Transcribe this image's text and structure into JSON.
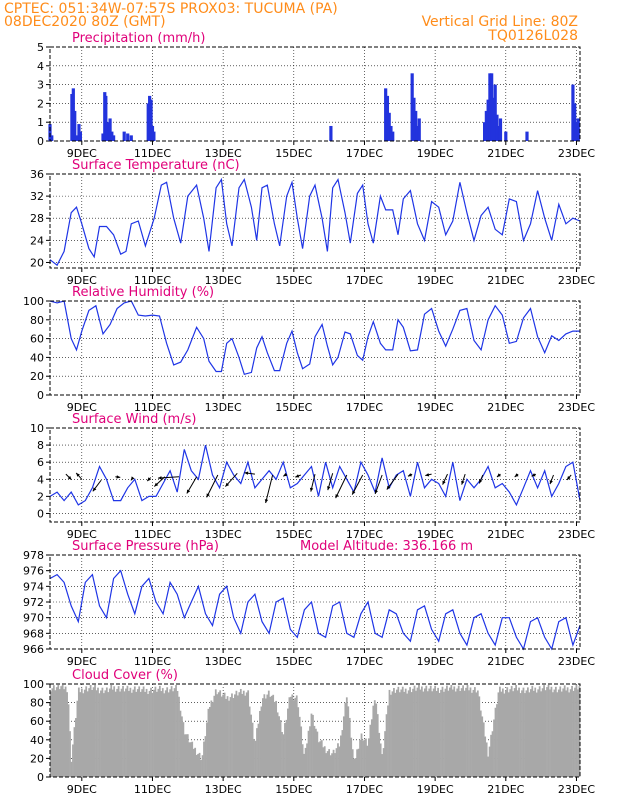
{
  "header": {
    "left1": "CPTEC:  051:34W-07:57S  PROX03: TUCUMA (PA)",
    "left2": "08DEC2020 80Z (GMT)",
    "right2": "Vertical Grid Line: 80Z",
    "right3": "TQ0126L028"
  },
  "colors": {
    "header": "#ff8c1a",
    "title": "#e0007a",
    "line": "#1f35e6",
    "bar": "#2233dd",
    "cloud": "#a8a8a8",
    "arrow": "#000000"
  },
  "chart_data": [
    {
      "id": "precip",
      "type": "bar",
      "title": "Precipitation (mm/h)",
      "x_tick_labels": [
        "9DEC",
        "11DEC",
        "13DEC",
        "15DEC",
        "17DEC",
        "19DEC",
        "21DEC",
        "23DEC"
      ],
      "x_range_days": [
        8.1,
        23.1
      ],
      "ylim": [
        0,
        5
      ],
      "yticks": [
        0,
        1,
        2,
        3,
        4,
        5
      ],
      "x": [
        8.1,
        8.15,
        8.72,
        8.76,
        8.8,
        8.88,
        8.92,
        8.96,
        9.6,
        9.65,
        9.68,
        9.72,
        9.76,
        9.8,
        9.85,
        9.9,
        10.2,
        10.3,
        10.4,
        10.88,
        10.92,
        10.96,
        11.0,
        11.04,
        16.05,
        17.6,
        17.65,
        17.7,
        17.75,
        17.8,
        18.35,
        18.4,
        18.45,
        18.5,
        18.55,
        20.4,
        20.45,
        20.5,
        20.55,
        20.6,
        20.65,
        20.7,
        20.75,
        20.8,
        20.85,
        21.0,
        21.6,
        22.9,
        22.95,
        23.0,
        23.05
      ],
      "y": [
        0.9,
        0.3,
        2.5,
        2.8,
        1.6,
        0.3,
        0.9,
        0.5,
        0.4,
        2.6,
        2.4,
        1.0,
        0.8,
        1.2,
        0.5,
        0.3,
        0.5,
        0.4,
        0.3,
        2.0,
        2.4,
        2.2,
        0.8,
        0.5,
        0.8,
        2.8,
        2.4,
        1.5,
        0.8,
        0.5,
        3.6,
        2.3,
        1.6,
        0.8,
        1.2,
        1.0,
        1.6,
        2.2,
        3.6,
        3.6,
        2.3,
        3.0,
        1.4,
        0.8,
        1.2,
        0.5,
        0.5,
        3.0,
        2.0,
        1.0,
        1.2
      ]
    },
    {
      "id": "temp",
      "type": "line",
      "title": "Surface Temperature (nC)",
      "x_tick_labels": [
        "9DEC",
        "11DEC",
        "13DEC",
        "15DEC",
        "17DEC",
        "19DEC",
        "21DEC",
        "23DEC"
      ],
      "ylim": [
        19,
        36
      ],
      "yticks": [
        20,
        24,
        28,
        32,
        36
      ],
      "x": [
        8.1,
        8.3,
        8.5,
        8.7,
        8.85,
        9.0,
        9.2,
        9.35,
        9.5,
        9.7,
        9.9,
        10.1,
        10.25,
        10.4,
        10.6,
        10.8,
        11.05,
        11.25,
        11.4,
        11.6,
        11.8,
        12.0,
        12.25,
        12.45,
        12.6,
        12.8,
        12.95,
        13.1,
        13.25,
        13.45,
        13.6,
        13.8,
        13.95,
        14.1,
        14.25,
        14.45,
        14.6,
        14.8,
        14.95,
        15.1,
        15.25,
        15.45,
        15.6,
        15.8,
        15.95,
        16.1,
        16.25,
        16.45,
        16.6,
        16.8,
        16.95,
        17.1,
        17.25,
        17.45,
        17.6,
        17.8,
        17.95,
        18.1,
        18.3,
        18.5,
        18.7,
        18.9,
        19.1,
        19.3,
        19.5,
        19.7,
        19.9,
        20.1,
        20.3,
        20.5,
        20.7,
        20.9,
        21.1,
        21.3,
        21.5,
        21.7,
        21.9,
        22.1,
        22.3,
        22.5,
        22.7,
        22.9,
        23.1
      ],
      "y": [
        20.5,
        19.5,
        22,
        29,
        30,
        27,
        22.5,
        21,
        26.5,
        26.5,
        25,
        21.5,
        22,
        27,
        27.5,
        23,
        28,
        34,
        34.5,
        28,
        23.5,
        32,
        34,
        28,
        22,
        33.5,
        35,
        27,
        23,
        33.5,
        35,
        30,
        24,
        33.5,
        34,
        27,
        23,
        32,
        34.5,
        28,
        22.5,
        32,
        34,
        28,
        22,
        33.5,
        35,
        29,
        23.5,
        32.5,
        34,
        27,
        23.5,
        32,
        29.5,
        29.5,
        25,
        31.5,
        33,
        27,
        24,
        31,
        30,
        25,
        27.5,
        34.5,
        29,
        24,
        28.5,
        30,
        26,
        25,
        31.5,
        31,
        24,
        27,
        33,
        28,
        24,
        30.5,
        27,
        28,
        27.5
      ]
    },
    {
      "id": "rh",
      "type": "line",
      "title": "Relative Humidity (%)",
      "x_tick_labels": [
        "9DEC",
        "11DEC",
        "13DEC",
        "15DEC",
        "17DEC",
        "19DEC",
        "21DEC",
        "23DEC"
      ],
      "ylim": [
        0,
        100
      ],
      "yticks": [
        0,
        20,
        40,
        60,
        80,
        100
      ],
      "x": [
        8.1,
        8.3,
        8.5,
        8.7,
        8.85,
        9.0,
        9.2,
        9.4,
        9.6,
        9.8,
        10.0,
        10.2,
        10.4,
        10.6,
        10.8,
        11.0,
        11.2,
        11.4,
        11.6,
        11.8,
        12.0,
        12.25,
        12.45,
        12.6,
        12.8,
        12.95,
        13.1,
        13.25,
        13.45,
        13.6,
        13.8,
        13.95,
        14.1,
        14.25,
        14.45,
        14.6,
        14.8,
        14.95,
        15.1,
        15.25,
        15.45,
        15.6,
        15.8,
        15.95,
        16.1,
        16.25,
        16.45,
        16.6,
        16.8,
        16.95,
        17.1,
        17.25,
        17.45,
        17.6,
        17.8,
        17.95,
        18.1,
        18.3,
        18.5,
        18.7,
        18.9,
        19.1,
        19.3,
        19.5,
        19.7,
        19.9,
        20.1,
        20.3,
        20.5,
        20.7,
        20.9,
        21.1,
        21.3,
        21.5,
        21.7,
        21.9,
        22.1,
        22.3,
        22.5,
        22.7,
        22.9,
        23.1
      ],
      "y": [
        100,
        98,
        100,
        60,
        48,
        68,
        90,
        95,
        65,
        75,
        92,
        98,
        100,
        85,
        84,
        85,
        84,
        55,
        32,
        35,
        48,
        72,
        60,
        36,
        25,
        25,
        55,
        60,
        40,
        22,
        24,
        50,
        62,
        45,
        26,
        26,
        55,
        68,
        45,
        28,
        33,
        62,
        75,
        52,
        32,
        40,
        67,
        65,
        42,
        37,
        62,
        78,
        55,
        48,
        48,
        80,
        72,
        47,
        48,
        86,
        92,
        68,
        52,
        70,
        90,
        92,
        58,
        48,
        80,
        95,
        85,
        55,
        57,
        82,
        92,
        62,
        45,
        63,
        58,
        65,
        68,
        68
      ]
    },
    {
      "id": "wind",
      "type": "line",
      "title": "Surface Wind (m/s)",
      "x_tick_labels": [
        "9DEC",
        "11DEC",
        "13DEC",
        "15DEC",
        "17DEC",
        "19DEC",
        "21DEC",
        "23DEC"
      ],
      "ylim": [
        -1,
        10
      ],
      "yticks": [
        0,
        2,
        4,
        6,
        8,
        10
      ],
      "x": [
        8.1,
        8.3,
        8.5,
        8.7,
        8.9,
        9.1,
        9.3,
        9.5,
        9.7,
        9.9,
        10.1,
        10.3,
        10.5,
        10.7,
        10.9,
        11.1,
        11.3,
        11.5,
        11.7,
        11.9,
        12.1,
        12.3,
        12.5,
        12.7,
        12.9,
        13.1,
        13.3,
        13.5,
        13.7,
        13.9,
        14.1,
        14.3,
        14.5,
        14.7,
        14.9,
        15.1,
        15.3,
        15.5,
        15.7,
        15.9,
        16.1,
        16.3,
        16.5,
        16.7,
        16.9,
        17.1,
        17.3,
        17.5,
        17.7,
        17.9,
        18.1,
        18.3,
        18.5,
        18.7,
        18.9,
        19.1,
        19.3,
        19.5,
        19.7,
        19.9,
        20.1,
        20.3,
        20.5,
        20.7,
        20.9,
        21.1,
        21.3,
        21.5,
        21.7,
        21.9,
        22.1,
        22.3,
        22.5,
        22.7,
        22.9,
        23.1
      ],
      "y": [
        2,
        2.5,
        1.5,
        2.5,
        1,
        1.5,
        3,
        5.5,
        4,
        1.5,
        1.5,
        3,
        4,
        1.5,
        2,
        2,
        3.5,
        5,
        2.5,
        7.5,
        5,
        4,
        8,
        4.5,
        3,
        6,
        4.5,
        3.5,
        6,
        3,
        4,
        5,
        4,
        6,
        3,
        3.5,
        4.5,
        5.5,
        2,
        6,
        3,
        5.5,
        4,
        2.5,
        6,
        4.5,
        2.5,
        6.5,
        3,
        4.5,
        5,
        2,
        6,
        3,
        4,
        3.5,
        2,
        6,
        1.5,
        4,
        3,
        4,
        5.5,
        3,
        3.5,
        2.5,
        1,
        3,
        5,
        3,
        5,
        2,
        3.5,
        5.5,
        6,
        1.5
      ],
      "arrows": [
        {
          "x": 8.55,
          "y": 4.6,
          "u": 0.8,
          "v": -0.8
        },
        {
          "x": 9.0,
          "y": 4.0,
          "u": -0.8,
          "v": 0.9
        },
        {
          "x": 9.55,
          "y": 3.9,
          "u": -1.2,
          "v": -1.6
        },
        {
          "x": 9.95,
          "y": 4.3,
          "u": 0.7,
          "v": -0.1
        },
        {
          "x": 10.45,
          "y": 4.2,
          "u": -0.3,
          "v": -0.4
        },
        {
          "x": 10.95,
          "y": 4.2,
          "u": -0.5,
          "v": -0.5
        },
        {
          "x": 11.35,
          "y": 4.3,
          "u": -1.5,
          "v": -1.4
        },
        {
          "x": 11.75,
          "y": 4.3,
          "u": -3.0,
          "v": -0.2
        },
        {
          "x": 12.25,
          "y": 4.3,
          "u": -1.4,
          "v": -2.4
        },
        {
          "x": 12.85,
          "y": 4.5,
          "u": -1.6,
          "v": -3.2
        },
        {
          "x": 13.4,
          "y": 4.7,
          "u": -1.7,
          "v": -1.9
        },
        {
          "x": 13.9,
          "y": 4.6,
          "u": -1.5,
          "v": 0.2
        },
        {
          "x": 14.4,
          "y": 4.5,
          "u": -1.0,
          "v": -4.0
        },
        {
          "x": 14.8,
          "y": 4.6,
          "u": -0.5,
          "v": -0.3
        },
        {
          "x": 15.2,
          "y": 4.5,
          "u": -0.8,
          "v": -0.3
        },
        {
          "x": 15.6,
          "y": 4.6,
          "u": -0.6,
          "v": -2.5
        },
        {
          "x": 16.1,
          "y": 4.7,
          "u": -0.7,
          "v": -2.4
        },
        {
          "x": 16.5,
          "y": 4.5,
          "u": -1.6,
          "v": -3.3
        },
        {
          "x": 16.95,
          "y": 4.5,
          "u": -1.5,
          "v": -2.8
        },
        {
          "x": 17.5,
          "y": 4.5,
          "u": -1.0,
          "v": -2.7
        },
        {
          "x": 17.95,
          "y": 4.6,
          "u": -1.6,
          "v": -2.2
        },
        {
          "x": 18.35,
          "y": 4.6,
          "u": -0.6,
          "v": -0.3
        },
        {
          "x": 18.9,
          "y": 4.6,
          "u": -0.9,
          "v": -0.2
        },
        {
          "x": 19.35,
          "y": 4.6,
          "u": -0.7,
          "v": -1.5
        },
        {
          "x": 19.85,
          "y": 4.6,
          "u": -0.5,
          "v": -1.5
        },
        {
          "x": 20.35,
          "y": 4.5,
          "u": -0.5,
          "v": -1.2
        },
        {
          "x": 20.85,
          "y": 4.6,
          "u": -0.5,
          "v": -0.4
        },
        {
          "x": 21.35,
          "y": 4.6,
          "u": -0.5,
          "v": -0.4
        },
        {
          "x": 21.85,
          "y": 4.6,
          "u": -0.6,
          "v": -0.3
        },
        {
          "x": 22.35,
          "y": 4.5,
          "u": -0.5,
          "v": -1.3
        },
        {
          "x": 22.85,
          "y": 4.5,
          "u": -0.6,
          "v": -0.7
        }
      ]
    },
    {
      "id": "pres",
      "type": "line",
      "title": "Surface Pressure (hPa)",
      "annotation": "Model Altitude: 336.166 m",
      "x_tick_labels": [
        "9DEC",
        "11DEC",
        "13DEC",
        "15DEC",
        "17DEC",
        "19DEC",
        "21DEC",
        "23DEC"
      ],
      "ylim": [
        966,
        978
      ],
      "yticks": [
        966,
        968,
        970,
        972,
        974,
        976,
        978
      ],
      "x": [
        8.1,
        8.3,
        8.5,
        8.7,
        8.9,
        9.1,
        9.3,
        9.5,
        9.7,
        9.9,
        10.1,
        10.3,
        10.5,
        10.7,
        10.9,
        11.1,
        11.3,
        11.5,
        11.7,
        11.9,
        12.1,
        12.3,
        12.5,
        12.7,
        12.9,
        13.1,
        13.3,
        13.5,
        13.7,
        13.9,
        14.1,
        14.3,
        14.5,
        14.7,
        14.9,
        15.1,
        15.3,
        15.5,
        15.7,
        15.9,
        16.1,
        16.3,
        16.5,
        16.7,
        16.9,
        17.1,
        17.3,
        17.5,
        17.7,
        17.9,
        18.1,
        18.3,
        18.5,
        18.7,
        18.9,
        19.1,
        19.3,
        19.5,
        19.7,
        19.9,
        20.1,
        20.3,
        20.5,
        20.7,
        20.9,
        21.1,
        21.3,
        21.5,
        21.7,
        21.9,
        22.1,
        22.3,
        22.5,
        22.7,
        22.9,
        23.1
      ],
      "y": [
        975,
        975.5,
        974.5,
        971.5,
        969.5,
        974.5,
        975.5,
        971.5,
        970,
        975,
        976,
        973,
        970.5,
        974,
        975,
        972,
        970.5,
        974.5,
        973,
        970,
        972,
        974,
        970.5,
        969,
        973,
        974,
        970,
        968,
        972,
        973,
        969.5,
        968,
        972,
        972.5,
        968.5,
        967.5,
        971,
        972,
        968,
        967.5,
        971.5,
        972,
        968,
        967.5,
        970.5,
        972,
        968,
        967.5,
        971,
        970.5,
        968,
        967,
        971,
        971.5,
        968.5,
        967,
        970.5,
        971,
        968,
        966.5,
        970,
        970.5,
        968,
        966.5,
        970,
        970,
        967.5,
        966,
        969.5,
        970,
        967.5,
        966,
        969.5,
        970,
        966.5,
        969
      ]
    },
    {
      "id": "cloud",
      "type": "area",
      "title": "Cloud Cover (%)",
      "x_tick_labels": [
        "9DEC",
        "11DEC",
        "13DEC",
        "15DEC",
        "17DEC",
        "19DEC",
        "21DEC",
        "23DEC"
      ],
      "ylim": [
        0,
        100
      ],
      "yticks": [
        0,
        20,
        40,
        60,
        80,
        100
      ],
      "x": [
        8.1,
        8.4,
        8.6,
        8.7,
        8.9,
        9.1,
        9.3,
        9.5,
        9.7,
        9.9,
        10.1,
        10.3,
        10.5,
        10.8,
        11.1,
        11.4,
        11.7,
        11.9,
        12.1,
        12.4,
        12.6,
        12.8,
        13.1,
        13.4,
        13.7,
        13.9,
        14.1,
        14.3,
        14.5,
        14.7,
        14.9,
        15.1,
        15.3,
        15.5,
        15.7,
        15.9,
        16.1,
        16.3,
        16.5,
        16.7,
        16.9,
        17.1,
        17.3,
        17.5,
        17.7,
        17.9,
        18.1,
        18.4,
        18.7,
        19.0,
        19.3,
        19.6,
        19.9,
        20.2,
        20.5,
        20.8,
        21.0,
        21.3,
        21.6,
        21.9,
        22.2,
        22.5,
        22.8,
        23.1
      ],
      "y": [
        96,
        97,
        95,
        18,
        92,
        95,
        96,
        94,
        93,
        96,
        95,
        94,
        95,
        93,
        94,
        94,
        95,
        50,
        35,
        20,
        75,
        93,
        85,
        90,
        92,
        35,
        85,
        90,
        80,
        45,
        88,
        85,
        20,
        70,
        40,
        30,
        25,
        35,
        90,
        15,
        45,
        35,
        90,
        20,
        92,
        94,
        93,
        95,
        96,
        94,
        95,
        96,
        95,
        94,
        25,
        93,
        94,
        95,
        93,
        95,
        96,
        94,
        95,
        97
      ]
    }
  ]
}
